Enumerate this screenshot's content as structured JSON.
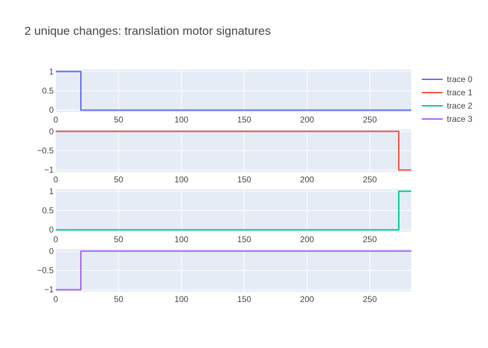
{
  "chart_data": {
    "type": "line",
    "title": "2 unique changes: translation motor signatures",
    "legend_position": "top-right",
    "grid": true,
    "background": "#e5ecf6",
    "xlim": [
      0,
      283
    ],
    "x_ticks": [
      0,
      50,
      100,
      150,
      200,
      250
    ],
    "subplots": [
      {
        "series": {
          "name": "trace 0",
          "color": "#636efa",
          "x": [
            0,
            20,
            20,
            283
          ],
          "y": [
            1,
            1,
            0,
            0
          ]
        },
        "ylim": [
          -0.05,
          1.05
        ],
        "y_ticks": [
          {
            "v": 1,
            "label": "1"
          },
          {
            "v": 0.5,
            "label": "0.5"
          },
          {
            "v": 0,
            "label": "0"
          }
        ]
      },
      {
        "series": {
          "name": "trace 1",
          "color": "#ef553b",
          "x": [
            0,
            273,
            273,
            283
          ],
          "y": [
            0,
            0,
            -1,
            -1
          ]
        },
        "ylim": [
          -1.05,
          0.05
        ],
        "y_ticks": [
          {
            "v": 0,
            "label": "0"
          },
          {
            "v": -0.5,
            "label": "−0.5"
          },
          {
            "v": -1,
            "label": "−1"
          }
        ]
      },
      {
        "series": {
          "name": "trace 2",
          "color": "#00cc96",
          "x": [
            0,
            273,
            273,
            283
          ],
          "y": [
            0,
            0,
            1,
            1
          ]
        },
        "ylim": [
          -0.05,
          1.05
        ],
        "y_ticks": [
          {
            "v": 1,
            "label": "1"
          },
          {
            "v": 0.5,
            "label": "0.5"
          },
          {
            "v": 0,
            "label": "0"
          }
        ]
      },
      {
        "series": {
          "name": "trace 3",
          "color": "#ab63fa",
          "x": [
            0,
            20,
            20,
            283
          ],
          "y": [
            -1,
            -1,
            0,
            0
          ]
        },
        "ylim": [
          -1.05,
          0.05
        ],
        "y_ticks": [
          {
            "v": 0,
            "label": "0"
          },
          {
            "v": -0.5,
            "label": "−0.5"
          },
          {
            "v": -1,
            "label": "−1"
          }
        ]
      }
    ]
  }
}
